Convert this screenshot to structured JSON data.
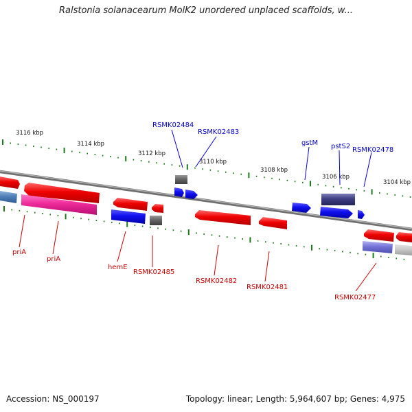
{
  "header": {
    "title": "Ralstonia solanacearum MolK2 unordered unplaced scaffolds, w..."
  },
  "footer": {
    "accession": "Accession: NS_000197",
    "summary": "Topology: linear; Length: 5,964,607 bp; Genes: 4,975"
  },
  "scale": {
    "ticks": [
      "3116 kbp",
      "3114 kbp",
      "3112 kbp",
      "3110 kbp",
      "3108 kbp",
      "3106 kbp",
      "3104 kbp"
    ]
  },
  "genes": {
    "forward": [
      "RSMK02484",
      "RSMK02483",
      "gstM",
      "pstS2",
      "RSMK02478"
    ],
    "reverse": [
      "priA",
      "priA",
      "hemE",
      "RSMK02485",
      "RSMK02482",
      "RSMK02481",
      "RSMK02477"
    ]
  },
  "colors": {
    "forward_label": "#0000cc",
    "reverse_label": "#cc0000",
    "tick_green": "#1a7a1a",
    "backbone": "#8a8a8a"
  }
}
